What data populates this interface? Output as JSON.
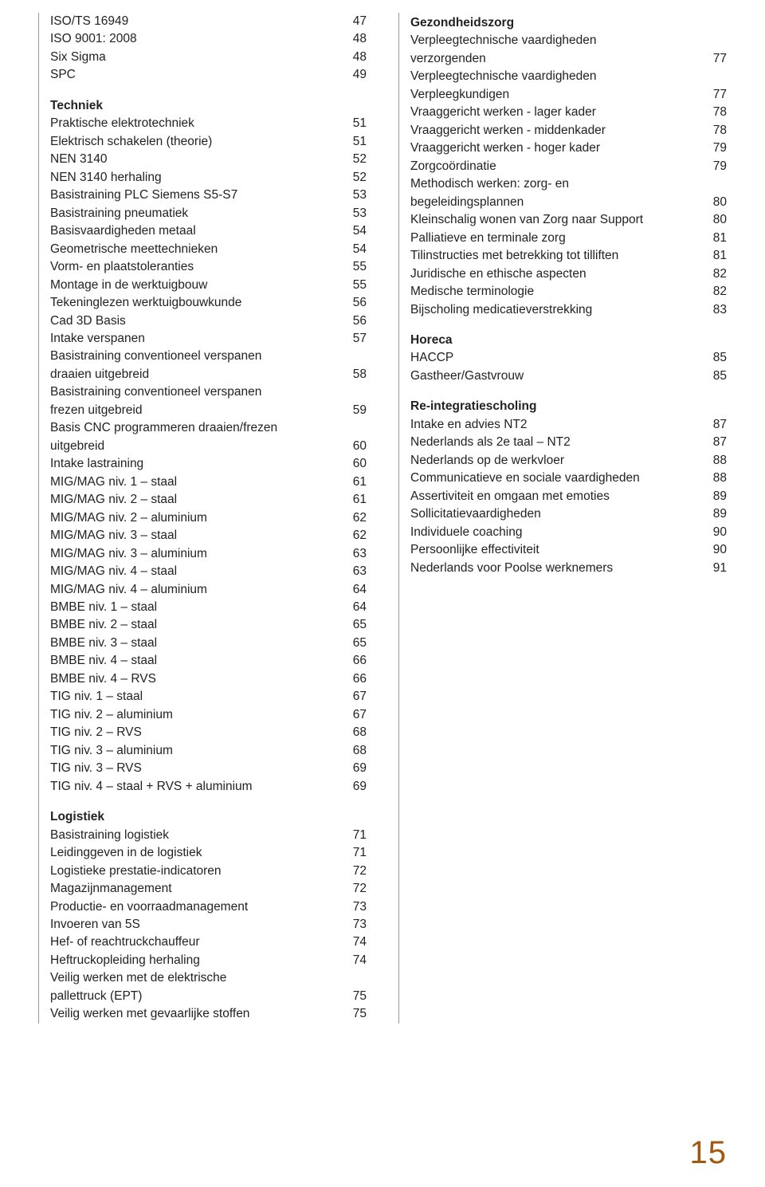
{
  "pageNumber": "15",
  "colors": {
    "text": "#222222",
    "accent": "#a3560d",
    "divider": "#999999",
    "background": "#ffffff"
  },
  "left": {
    "intro": [
      {
        "label": "ISO/TS 16949",
        "page": "47"
      },
      {
        "label": "ISO 9001: 2008",
        "page": "48"
      },
      {
        "label": "Six Sigma",
        "page": "48"
      },
      {
        "label": "SPC",
        "page": "49"
      }
    ],
    "sections": [
      {
        "heading": "Techniek",
        "rows": [
          {
            "label": "Praktische elektrotechniek",
            "page": "51"
          },
          {
            "label": "Elektrisch schakelen (theorie)",
            "page": "51"
          },
          {
            "label": "NEN 3140",
            "page": "52"
          },
          {
            "label": "NEN 3140 herhaling",
            "page": "52"
          },
          {
            "label": "Basistraining PLC Siemens S5-S7",
            "page": "53"
          },
          {
            "label": "Basistraining pneumatiek",
            "page": "53"
          },
          {
            "label": "Basisvaardigheden metaal",
            "page": "54"
          },
          {
            "label": "Geometrische meettechnieken",
            "page": "54"
          },
          {
            "label": "Vorm- en plaatstoleranties",
            "page": "55"
          },
          {
            "label": "Montage in de werktuigbouw",
            "page": "55"
          },
          {
            "label": "Tekeninglezen werktuigbouwkunde",
            "page": "56"
          },
          {
            "label": "Cad 3D Basis",
            "page": "56"
          },
          {
            "label": "Intake verspanen",
            "page": "57"
          },
          {
            "label": "Basistraining conventioneel verspanen",
            "cont": true
          },
          {
            "label": "draaien uitgebreid",
            "page": "58"
          },
          {
            "label": "Basistraining conventioneel verspanen",
            "cont": true
          },
          {
            "label": "frezen uitgebreid",
            "page": "59"
          },
          {
            "label": "Basis CNC programmeren draaien/frezen",
            "cont": true
          },
          {
            "label": "uitgebreid",
            "page": "60"
          },
          {
            "label": "Intake lastraining",
            "page": "60"
          },
          {
            "label": "MIG/MAG niv. 1 – staal",
            "page": "61"
          },
          {
            "label": "MIG/MAG niv. 2 – staal",
            "page": "61"
          },
          {
            "label": "MIG/MAG niv. 2 – aluminium",
            "page": "62"
          },
          {
            "label": "MIG/MAG niv. 3 – staal",
            "page": "62"
          },
          {
            "label": "MIG/MAG niv. 3 – aluminium",
            "page": "63"
          },
          {
            "label": "MIG/MAG niv. 4 – staal",
            "page": "63"
          },
          {
            "label": "MIG/MAG niv. 4 – aluminium",
            "page": "64"
          },
          {
            "label": "BMBE niv. 1 – staal",
            "page": "64"
          },
          {
            "label": "BMBE niv. 2 – staal",
            "page": "65"
          },
          {
            "label": "BMBE niv. 3 – staal",
            "page": "65"
          },
          {
            "label": "BMBE niv. 4 – staal",
            "page": "66"
          },
          {
            "label": "BMBE niv. 4 – RVS",
            "page": "66"
          },
          {
            "label": "TIG niv. 1 – staal",
            "page": "67"
          },
          {
            "label": "TIG niv. 2 – aluminium",
            "page": "67"
          },
          {
            "label": "TIG niv. 2 – RVS",
            "page": "68"
          },
          {
            "label": "TIG niv. 3 – aluminium",
            "page": "68"
          },
          {
            "label": "TIG niv. 3 – RVS",
            "page": "69"
          },
          {
            "label": "TIG niv. 4 – staal + RVS + aluminium",
            "page": "69"
          }
        ]
      },
      {
        "heading": "Logistiek",
        "rows": [
          {
            "label": "Basistraining logistiek",
            "page": "71"
          },
          {
            "label": "Leidinggeven in de logistiek",
            "page": "71"
          },
          {
            "label": "Logistieke prestatie-indicatoren",
            "page": "72"
          },
          {
            "label": "Magazijnmanagement",
            "page": "72"
          },
          {
            "label": "Productie- en voorraadmanagement",
            "page": "73"
          },
          {
            "label": "Invoeren van 5S",
            "page": "73"
          },
          {
            "label": "Hef- of reachtruckchauffeur",
            "page": "74"
          },
          {
            "label": "Heftruckopleiding herhaling",
            "page": "74"
          },
          {
            "label": "Veilig werken met de elektrische",
            "cont": true
          },
          {
            "label": "pallettruck (EPT)",
            "page": "75"
          },
          {
            "label": "Veilig werken met gevaarlijke stoffen",
            "page": "75"
          }
        ]
      }
    ]
  },
  "right": {
    "sections": [
      {
        "heading": "Gezondheidszorg",
        "rows": [
          {
            "label": "Verpleegtechnische vaardigheden",
            "cont": true
          },
          {
            "label": "verzorgenden",
            "page": "77"
          },
          {
            "label": "Verpleegtechnische vaardigheden",
            "cont": true
          },
          {
            "label": "Verpleegkundigen",
            "page": "77"
          },
          {
            "label": "Vraaggericht werken - lager kader",
            "page": "78"
          },
          {
            "label": "Vraaggericht werken - middenkader",
            "page": "78"
          },
          {
            "label": "Vraaggericht werken - hoger kader",
            "page": "79"
          },
          {
            "label": "Zorgcoördinatie",
            "page": "79"
          },
          {
            "label": "Methodisch werken: zorg- en",
            "cont": true
          },
          {
            "label": "begeleidingsplannen",
            "page": "80"
          },
          {
            "label": "Kleinschalig wonen van Zorg naar Support",
            "page": "80"
          },
          {
            "label": "Palliatieve en terminale zorg",
            "page": "81"
          },
          {
            "label": "Tilinstructies met betrekking tot tilliften",
            "page": "81"
          },
          {
            "label": "Juridische en ethische aspecten",
            "page": "82"
          },
          {
            "label": "Medische terminologie",
            "page": "82"
          },
          {
            "label": "Bijscholing medicatieverstrekking",
            "page": "83"
          }
        ]
      },
      {
        "heading": "Horeca",
        "rows": [
          {
            "label": "HACCP",
            "page": "85"
          },
          {
            "label": "Gastheer/Gastvrouw",
            "page": "85"
          }
        ]
      },
      {
        "heading": "Re-integratiescholing",
        "rows": [
          {
            "label": "Intake en advies NT2",
            "page": "87"
          },
          {
            "label": "Nederlands als 2e taal – NT2",
            "page": "87"
          },
          {
            "label": "Nederlands op de werkvloer",
            "page": "88"
          },
          {
            "label": "Communicatieve en sociale vaardigheden",
            "page": "88"
          },
          {
            "label": "Assertiviteit en omgaan met emoties",
            "page": "89"
          },
          {
            "label": "Sollicitatievaardigheden",
            "page": "89"
          },
          {
            "label": "Individuele coaching",
            "page": "90"
          },
          {
            "label": "Persoonlijke effectiviteit",
            "page": "90"
          },
          {
            "label": "Nederlands voor Poolse werknemers",
            "page": "91"
          }
        ]
      }
    ]
  }
}
